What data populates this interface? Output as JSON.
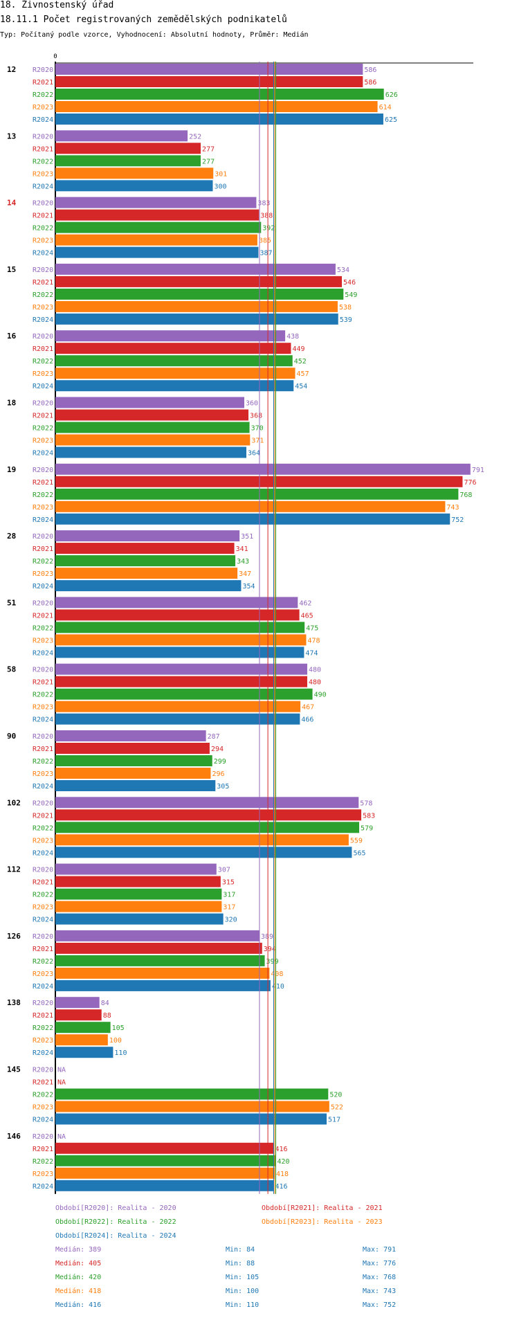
{
  "header": {
    "title": "18. Živnostenský úřad",
    "subtitle_code": "18.11.1 Počet registrovaných zemědělských podnikatelů",
    "type_line": "Typ: Počítaný podle vzorce, Vyhodnocení: Absolutní hodnoty, Průměr: Medián"
  },
  "chart_data": {
    "type": "bar",
    "orientation": "horizontal",
    "axis_zero_label": "0",
    "x_range": [
      0,
      810
    ],
    "series": [
      {
        "name": "R2020",
        "color": "#9467bd",
        "legend": "Období[R2020]: Realita - 2020"
      },
      {
        "name": "R2021",
        "color": "#d62728",
        "legend": "Období[R2021]: Realita - 2021"
      },
      {
        "name": "R2022",
        "color": "#2ca02c",
        "legend": "Období[R2022]: Realita - 2022"
      },
      {
        "name": "R2023",
        "color": "#ff7f0e",
        "legend": "Období[R2023]: Realita - 2023"
      },
      {
        "name": "R2024",
        "color": "#1f77b4",
        "legend": "Období[R2024]: Realita - 2024"
      }
    ],
    "categories": [
      {
        "label": "12",
        "highlight": false,
        "values": [
          586,
          586,
          626,
          614,
          625
        ]
      },
      {
        "label": "13",
        "highlight": false,
        "values": [
          252,
          277,
          277,
          301,
          300
        ]
      },
      {
        "label": "14",
        "highlight": true,
        "values": [
          383,
          388,
          392,
          385,
          387
        ]
      },
      {
        "label": "15",
        "highlight": false,
        "values": [
          534,
          546,
          549,
          538,
          539
        ]
      },
      {
        "label": "16",
        "highlight": false,
        "values": [
          438,
          449,
          452,
          457,
          454
        ]
      },
      {
        "label": "18",
        "highlight": false,
        "values": [
          360,
          368,
          370,
          371,
          364
        ]
      },
      {
        "label": "19",
        "highlight": false,
        "values": [
          791,
          776,
          768,
          743,
          752
        ]
      },
      {
        "label": "28",
        "highlight": false,
        "values": [
          351,
          341,
          343,
          347,
          354
        ]
      },
      {
        "label": "51",
        "highlight": false,
        "values": [
          462,
          465,
          475,
          478,
          474
        ]
      },
      {
        "label": "58",
        "highlight": false,
        "values": [
          480,
          480,
          490,
          467,
          466
        ]
      },
      {
        "label": "90",
        "highlight": false,
        "values": [
          287,
          294,
          299,
          296,
          305
        ]
      },
      {
        "label": "102",
        "highlight": false,
        "values": [
          578,
          583,
          579,
          559,
          565
        ]
      },
      {
        "label": "112",
        "highlight": false,
        "values": [
          307,
          315,
          317,
          317,
          320
        ]
      },
      {
        "label": "126",
        "highlight": false,
        "values": [
          389,
          394,
          399,
          408,
          410
        ]
      },
      {
        "label": "138",
        "highlight": false,
        "values": [
          84,
          88,
          105,
          100,
          110
        ]
      },
      {
        "label": "145",
        "highlight": false,
        "values": [
          null,
          null,
          520,
          522,
          517
        ]
      },
      {
        "label": "146",
        "highlight": false,
        "values": [
          null,
          416,
          420,
          418,
          416
        ]
      }
    ],
    "na_label": "NA",
    "median_lines": [
      389,
      405,
      420,
      418,
      416
    ],
    "stats": [
      {
        "median": "Medián: 389",
        "min": "Min: 84",
        "max": "Max: 791"
      },
      {
        "median": "Medián: 405",
        "min": "Min: 88",
        "max": "Max: 776"
      },
      {
        "median": "Medián: 420",
        "min": "Min: 105",
        "max": "Max: 768"
      },
      {
        "median": "Medián: 418",
        "min": "Min: 100",
        "max": "Max: 743"
      },
      {
        "median": "Medián: 416",
        "min": "Min: 110",
        "max": "Max: 752"
      }
    ],
    "stat_label_color": "#1f77b4"
  }
}
